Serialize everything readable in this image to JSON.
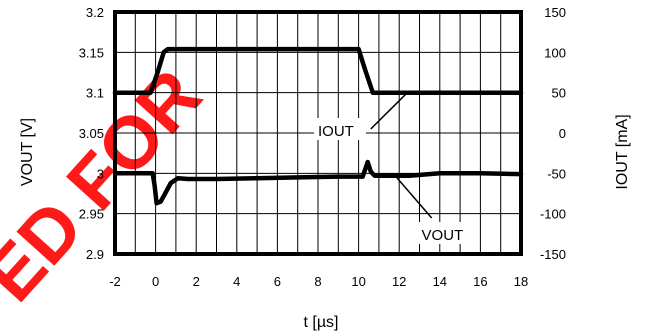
{
  "watermark": {
    "text": "ED FOR",
    "color": "#ff0000"
  },
  "chart_data": {
    "type": "line",
    "xlabel": "t [µs]",
    "ylabel_left": "VOUT [V]",
    "ylabel_right": "IOUT [mA]",
    "xlim": [
      -2,
      18
    ],
    "ylim_left": [
      2.9,
      3.2
    ],
    "ylim_right": [
      -150,
      150
    ],
    "x_ticks": [
      "-2",
      "0",
      "2",
      "4",
      "6",
      "8",
      "10",
      "12",
      "14",
      "16",
      "18"
    ],
    "y_left_ticks": [
      "2.9",
      "2.95",
      "3",
      "3.05",
      "3.1",
      "3.15",
      "3.2"
    ],
    "y_right_ticks": [
      "-150",
      "-100",
      "-50",
      "0",
      "50",
      "100",
      "150"
    ],
    "grid": true,
    "series": [
      {
        "name": "IOUT",
        "axis": "right",
        "color": "#000000",
        "x": [
          -2,
          -0.25,
          0.1,
          0.4,
          0.6,
          10.0,
          10.3,
          10.7,
          18
        ],
        "y": [
          50,
          50,
          75,
          100,
          104,
          104,
          80,
          50,
          50
        ]
      },
      {
        "name": "VOUT",
        "axis": "left",
        "color": "#000000",
        "x": [
          -2,
          -0.15,
          -0.05,
          0.05,
          0.25,
          0.45,
          0.75,
          1.1,
          1.6,
          3,
          5,
          7,
          9,
          10.2,
          10.45,
          10.6,
          10.8,
          11.3,
          12.5,
          14,
          16,
          18
        ],
        "y": [
          3.0,
          3.0,
          2.985,
          2.963,
          2.965,
          2.974,
          2.988,
          2.994,
          2.993,
          2.993,
          2.994,
          2.995,
          2.996,
          2.996,
          3.014,
          3.002,
          2.997,
          2.997,
          2.997,
          3.0,
          3.0,
          2.999
        ]
      }
    ],
    "annotations": [
      {
        "label": "IOUT",
        "target_series": "IOUT"
      },
      {
        "label": "VOUT",
        "target_series": "VOUT"
      }
    ]
  }
}
